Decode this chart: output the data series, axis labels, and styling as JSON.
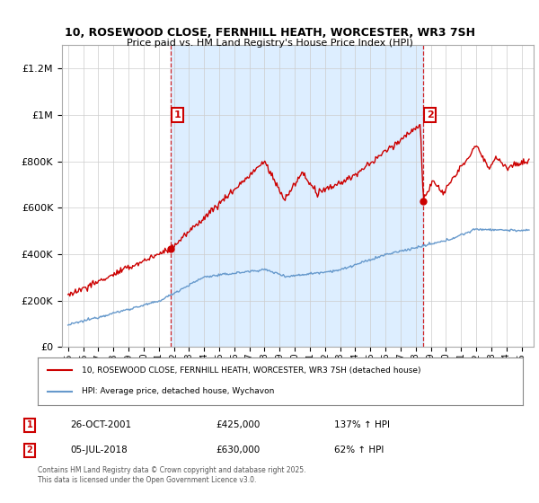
{
  "title1": "10, ROSEWOOD CLOSE, FERNHILL HEATH, WORCESTER, WR3 7SH",
  "title2": "Price paid vs. HM Land Registry's House Price Index (HPI)",
  "ylim": [
    0,
    1300000
  ],
  "yticks": [
    0,
    200000,
    400000,
    600000,
    800000,
    1000000,
    1200000
  ],
  "legend_line1": "10, ROSEWOOD CLOSE, FERNHILL HEATH, WORCESTER, WR3 7SH (detached house)",
  "legend_line2": "HPI: Average price, detached house, Wychavon",
  "footnote": "Contains HM Land Registry data © Crown copyright and database right 2025.\nThis data is licensed under the Open Government Licence v3.0.",
  "marker1_label": "1",
  "marker1_date": "26-OCT-2001",
  "marker1_price": "£425,000",
  "marker1_hpi": "137% ↑ HPI",
  "marker1_x": 2001.82,
  "marker1_y": 425000,
  "marker2_label": "2",
  "marker2_date": "05-JUL-2018",
  "marker2_price": "£630,000",
  "marker2_hpi": "62% ↑ HPI",
  "marker2_x": 2018.51,
  "marker2_y": 630000,
  "line_color": "#cc0000",
  "hpi_color": "#6699cc",
  "shade_color": "#ddeeff",
  "background_color": "#ffffff",
  "grid_color": "#cccccc",
  "xlim_left": 1994.6,
  "xlim_right": 2025.8
}
